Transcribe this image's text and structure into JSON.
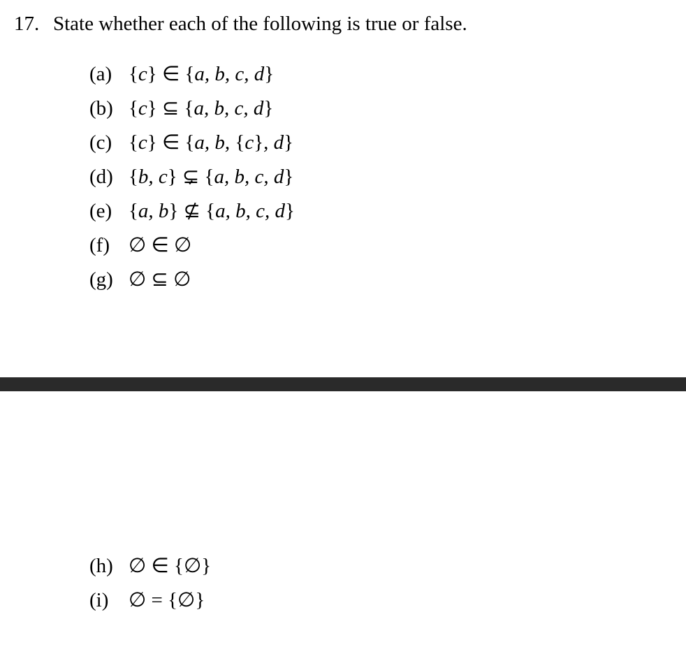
{
  "question": {
    "number": "17.",
    "text": "State whether each of the following is true or false."
  },
  "items_top": [
    {
      "label": "(a)",
      "lhs_open": "{",
      "lhs_content": "c",
      "lhs_close": "}",
      "relation": "∈",
      "rhs_open": "{",
      "rhs_content": "a, b, c, d",
      "rhs_close": "}"
    },
    {
      "label": "(b)",
      "lhs_open": "{",
      "lhs_content": "c",
      "lhs_close": "}",
      "relation": "⊆",
      "rhs_open": "{",
      "rhs_content": "a, b, c, d",
      "rhs_close": "}"
    },
    {
      "label": "(c)",
      "lhs_open": "{",
      "lhs_content": "c",
      "lhs_close": "}",
      "relation": "∈",
      "rhs_open": "{",
      "rhs_content_parts": [
        "a, b, ",
        "{",
        "c",
        "}",
        ", d"
      ],
      "rhs_close": "}"
    },
    {
      "label": "(d)",
      "lhs_open": "{",
      "lhs_content": "b, c",
      "lhs_close": "}",
      "relation": "⊊",
      "rhs_open": "{",
      "rhs_content": "a, b, c, d",
      "rhs_close": "}"
    },
    {
      "label": "(e)",
      "lhs_open": "{",
      "lhs_content": "a, b",
      "lhs_close": "}",
      "relation": "⊈",
      "rhs_open": "{",
      "rhs_content": "a, b, c, d",
      "rhs_close": "}"
    },
    {
      "label": "(f)",
      "lhs_sym": "∅",
      "relation": "∈",
      "rhs_sym": "∅"
    },
    {
      "label": "(g)",
      "lhs_sym": "∅",
      "relation": "⊆",
      "rhs_sym": "∅"
    }
  ],
  "items_bottom": [
    {
      "label": "(h)",
      "lhs_sym": "∅",
      "relation": "∈",
      "rhs_open": "{",
      "rhs_sym": "∅",
      "rhs_close": "}"
    },
    {
      "label": "(i)",
      "lhs_sym": "∅",
      "relation": "=",
      "rhs_open": "{",
      "rhs_sym": "∅",
      "rhs_close": "}"
    }
  ],
  "colors": {
    "background": "#ffffff",
    "text": "#000000",
    "divider": "#2a2a2a"
  },
  "typography": {
    "font_size": 29,
    "font_family": "Computer Modern serif",
    "line_spacing": 14
  }
}
